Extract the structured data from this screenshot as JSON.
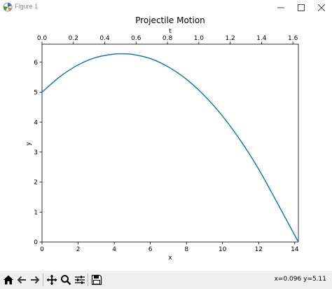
{
  "window": {
    "title": "Figure 1",
    "icons": {
      "app": "matplotlib-figure-icon",
      "minimize": "minimize-icon",
      "maximize": "maximize-icon",
      "close": "close-icon"
    }
  },
  "toolbar": {
    "icons": [
      "home-icon",
      "back-arrow-icon",
      "forward-arrow-icon",
      "pan-move-icon",
      "zoom-magnifier-icon",
      "configure-subplots-icon",
      "save-floppy-icon"
    ],
    "coordinates": "x=0.096 y=5.11"
  },
  "chart_data": {
    "type": "line",
    "title": "Projectile Motion",
    "xlabel": "x",
    "ylabel": "y",
    "secondary_xlabel": "t",
    "xlim": [
      0,
      14.2
    ],
    "ylim": [
      0,
      6.6
    ],
    "secondary_xlim": [
      0,
      1.635
    ],
    "x_ticks": [
      "0",
      "2",
      "4",
      "6",
      "8",
      "10",
      "12",
      "14"
    ],
    "y_ticks": [
      "0",
      "1",
      "2",
      "3",
      "4",
      "5",
      "6"
    ],
    "secondary_x_ticks": [
      "0.0",
      "0.2",
      "0.4",
      "0.6",
      "0.8",
      "1.0",
      "1.2",
      "1.4",
      "1.6"
    ],
    "grid": false,
    "line_color": "#1f77b4",
    "series": [
      {
        "x": [
          0.0,
          1.0,
          2.0,
          3.0,
          4.0,
          4.36,
          5.0,
          6.0,
          7.0,
          8.0,
          9.0,
          10.0,
          11.0,
          12.0,
          13.0,
          14.2
        ],
        "y": [
          5.0,
          5.52,
          5.91,
          6.16,
          6.27,
          6.28,
          6.26,
          6.12,
          5.84,
          5.43,
          4.88,
          4.2,
          3.38,
          2.43,
          1.34,
          0.0
        ]
      }
    ]
  }
}
